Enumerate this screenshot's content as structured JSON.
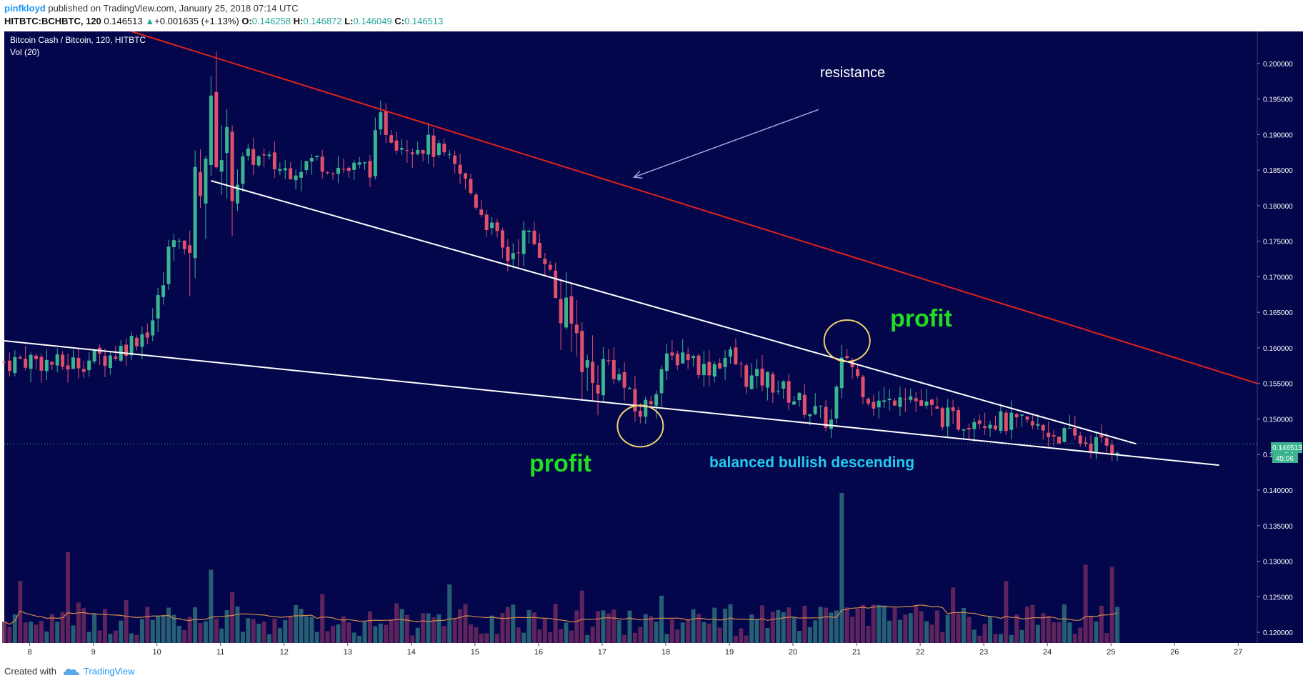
{
  "header": {
    "author": "pinfkloyd",
    "published_text": "published on TradingView.com, January 25, 2018 07:14 UTC",
    "symbol": "HITBTC:BCHBTC, 120",
    "last": "0.146513",
    "change_arrow": "▲",
    "change": "+0.001635 (+1.13%)",
    "o_label": "O:",
    "o_value": "0.146258",
    "h_label": "H:",
    "h_value": "0.146872",
    "l_label": "L:",
    "l_value": "0.146049",
    "c_label": "C:",
    "c_value": "0.146513"
  },
  "legend": {
    "title": "Bitcoin Cash / Bitcoin, 120, HITBTC",
    "vol": "Vol (20)"
  },
  "annotations": {
    "resistance": "resistance",
    "profit_top": "profit",
    "profit_bottom": "profit",
    "pattern": "balanced bullish descending"
  },
  "price_tags": {
    "last": "0.146513",
    "countdown": "45:06",
    "hidden_label": "0.1"
  },
  "footer": {
    "created": "Created with",
    "brand": "TradingView"
  },
  "colors": {
    "background": "#04064c",
    "bull": "#3bb48f",
    "bear": "#e0506a",
    "resistance_line": "#e0221c",
    "support_line": "#ffffff",
    "profit_text": "#22dd22",
    "pattern_text": "#22ccee",
    "ellipse": "#f0d070",
    "volume_ma": "#d4894a"
  },
  "chart_data": {
    "type": "candlestick",
    "title": "Bitcoin Cash / Bitcoin, 120, HITBTC",
    "ylim": [
      0.1185,
      0.2045
    ],
    "y_ticks": [
      0.2,
      0.195,
      0.19,
      0.185,
      0.18,
      0.175,
      0.17,
      0.165,
      0.16,
      0.155,
      0.15,
      0.145,
      0.14,
      0.135,
      0.13,
      0.125,
      0.12
    ],
    "y_tick_labels": [
      "0.200000",
      "0.195000",
      "0.190000",
      "0.185000",
      "0.180000",
      "0.175000",
      "0.170000",
      "0.165000",
      "0.160000",
      "0.155000",
      "0.150000",
      "0.145000",
      "0.140000",
      "0.135000",
      "0.130000",
      "0.125000",
      "0.120000"
    ],
    "x_ticks": [
      8,
      9,
      10,
      11,
      12,
      13,
      14,
      15,
      16,
      17,
      18,
      19,
      20,
      21,
      22,
      23,
      24,
      25,
      26,
      27
    ],
    "x_tick_labels": [
      "8",
      "9",
      "10",
      "11",
      "12",
      "13",
      "14",
      "15",
      "16",
      "17",
      "18",
      "19",
      "20",
      "21",
      "22",
      "23",
      "24",
      "25",
      "26",
      "27"
    ],
    "x_range_days": [
      7.6,
      27.3
    ],
    "close_anchors": [
      [
        7.6,
        0.158
      ],
      [
        8.0,
        0.1585
      ],
      [
        8.5,
        0.1575
      ],
      [
        9.0,
        0.1585
      ],
      [
        9.3,
        0.159
      ],
      [
        9.6,
        0.161
      ],
      [
        9.9,
        0.163
      ],
      [
        10.1,
        0.169
      ],
      [
        10.25,
        0.177
      ],
      [
        10.45,
        0.172
      ],
      [
        10.65,
        0.185
      ],
      [
        10.85,
        0.191
      ],
      [
        11.2,
        0.185
      ],
      [
        11.5,
        0.187
      ],
      [
        12.0,
        0.185
      ],
      [
        12.5,
        0.1865
      ],
      [
        13.0,
        0.185
      ],
      [
        13.35,
        0.1855
      ],
      [
        13.5,
        0.192
      ],
      [
        13.8,
        0.189
      ],
      [
        14.3,
        0.1885
      ],
      [
        14.8,
        0.184
      ],
      [
        15.3,
        0.176
      ],
      [
        15.5,
        0.1725
      ],
      [
        15.8,
        0.176
      ],
      [
        16.1,
        0.173
      ],
      [
        16.35,
        0.1645
      ],
      [
        16.6,
        0.162
      ],
      [
        16.85,
        0.1545
      ],
      [
        17.05,
        0.1585
      ],
      [
        17.3,
        0.1555
      ],
      [
        17.55,
        0.1505
      ],
      [
        17.75,
        0.1525
      ],
      [
        17.95,
        0.1575
      ],
      [
        18.3,
        0.1595
      ],
      [
        18.6,
        0.157
      ],
      [
        19.0,
        0.159
      ],
      [
        19.3,
        0.1555
      ],
      [
        19.6,
        0.1555
      ],
      [
        20.0,
        0.153
      ],
      [
        20.4,
        0.1505
      ],
      [
        20.6,
        0.1495
      ],
      [
        20.75,
        0.157
      ],
      [
        20.85,
        0.159
      ],
      [
        21.0,
        0.156
      ],
      [
        21.25,
        0.1525
      ],
      [
        21.5,
        0.152
      ],
      [
        21.7,
        0.1545
      ],
      [
        22.0,
        0.152
      ],
      [
        22.3,
        0.1505
      ],
      [
        22.6,
        0.1495
      ],
      [
        22.9,
        0.1505
      ],
      [
        23.3,
        0.1495
      ],
      [
        23.7,
        0.149
      ],
      [
        24.1,
        0.148
      ],
      [
        24.5,
        0.147
      ],
      [
        24.75,
        0.1465
      ],
      [
        25.0,
        0.1462
      ],
      [
        25.15,
        0.1465
      ]
    ],
    "volume_ma_approx": 0.122,
    "lines": [
      {
        "name": "resistance",
        "color": "#e0221c",
        "from": [
          9.6,
          0.2045
        ],
        "to": [
          27.3,
          0.155
        ]
      },
      {
        "name": "upper-support",
        "color": "#ffffff",
        "from": [
          10.85,
          0.1835
        ],
        "to": [
          25.4,
          0.1465
        ]
      },
      {
        "name": "lower-support",
        "color": "#ffffff",
        "from": [
          7.6,
          0.161
        ],
        "to": [
          26.7,
          0.1435
        ]
      }
    ],
    "resistance_arrow": {
      "from": [
        20.4,
        0.1935
      ],
      "to": [
        17.5,
        0.184
      ]
    },
    "ellipses": [
      {
        "center": [
          17.6,
          0.149
        ],
        "label": "profit_bottom"
      },
      {
        "center": [
          20.85,
          0.161
        ],
        "label": "profit_top"
      }
    ],
    "last_price": 0.146513
  }
}
